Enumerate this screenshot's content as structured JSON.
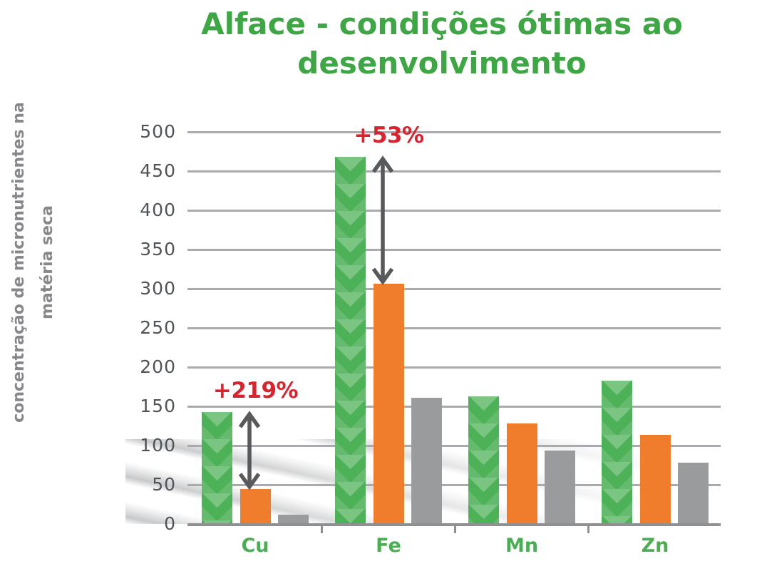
{
  "title": "Alface - condições ótimas ao desenvolvimento",
  "y_axis": {
    "line1": "concentração de micronutrientes na",
    "line2": "matéria seca"
  },
  "chart_data": {
    "type": "bar",
    "title": "Alface - condições ótimas ao desenvolvimento",
    "xlabel": "",
    "ylabel": "concentração de micronutrientes na matéria seca",
    "categories": [
      "Cu",
      "Fe",
      "Mn",
      "Zn"
    ],
    "series": [
      {
        "name": "verde",
        "color": "#4DB157",
        "values": [
          143,
          468,
          163,
          183
        ]
      },
      {
        "name": "laranja",
        "color": "#F07D2B",
        "values": [
          45,
          306,
          128,
          114
        ]
      },
      {
        "name": "cinza",
        "color": "#9A9B9D",
        "values": [
          12,
          161,
          94,
          78
        ]
      }
    ],
    "ylim": [
      0,
      500
    ],
    "yticks": [
      0,
      50,
      100,
      150,
      200,
      250,
      300,
      350,
      400,
      450,
      500
    ],
    "grid": true,
    "legend": "none",
    "annotations": [
      {
        "category": "Cu",
        "text": "+219%",
        "from_series": "verde",
        "to_series": "laranja"
      },
      {
        "category": "Fe",
        "text": "+53%",
        "from_series": "verde",
        "to_series": "laranja"
      }
    ]
  },
  "colors": {
    "title_green": "#3EA644",
    "category_green": "#4BAE54",
    "annotation_red": "#D9232E",
    "arrow_gray": "#58595B",
    "grid_gray": "#A8AAAD",
    "axis_gray": "#8E9093",
    "tick_label_gray": "#4F5358",
    "ylabel_gray": "#85878A"
  }
}
